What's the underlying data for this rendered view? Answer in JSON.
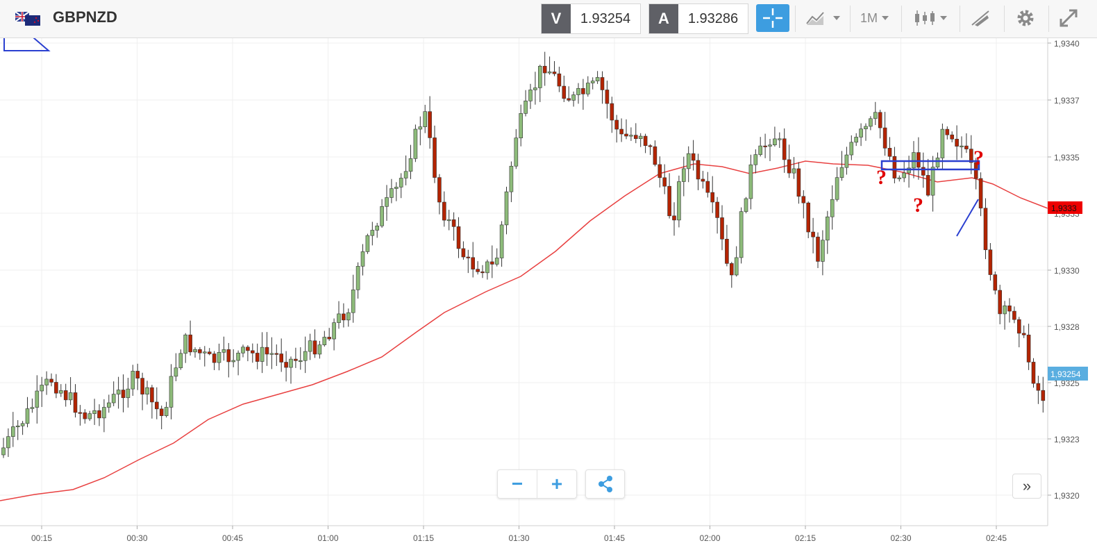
{
  "header": {
    "symbol": "GBPNZD",
    "flag_icon": "gb-nz-flag-icon",
    "sell_label": "V",
    "sell_price": "1.93254",
    "buy_label": "A",
    "buy_price": "1.93286",
    "timeframe": "1M",
    "tools": [
      "crosshair-icon",
      "chart-compare-icon",
      "candlestick-icon",
      "drawing-tools-icon",
      "gear-icon",
      "fullscreen-icon"
    ]
  },
  "colors": {
    "bull": "#8dbb7a",
    "bear": "#b32400",
    "ma": "#e84040",
    "accent": "#3d9de0",
    "annotation": "#2a3fd0",
    "question": "#e00000"
  },
  "chart_data": {
    "type": "candlestick",
    "y_ticks": [
      "1,9340",
      "1,9337",
      "1,9335",
      "1,9333",
      "1,9330",
      "1,9328",
      "1,9325",
      "1,9323",
      "1,9320"
    ],
    "x_ticks": [
      "00:15",
      "00:30",
      "00:45",
      "01:00",
      "01:15",
      "01:30",
      "01:45",
      "02:00",
      "02:15",
      "02:30",
      "02:45"
    ],
    "ma_label": "1,9333",
    "last_price_label": "1,93254",
    "ylim": [
      1.93195,
      1.93405
    ]
  },
  "controls": {
    "zoom_out": "−",
    "zoom_in": "+",
    "forward": "»"
  },
  "annotations": {
    "question_mark": "?"
  }
}
